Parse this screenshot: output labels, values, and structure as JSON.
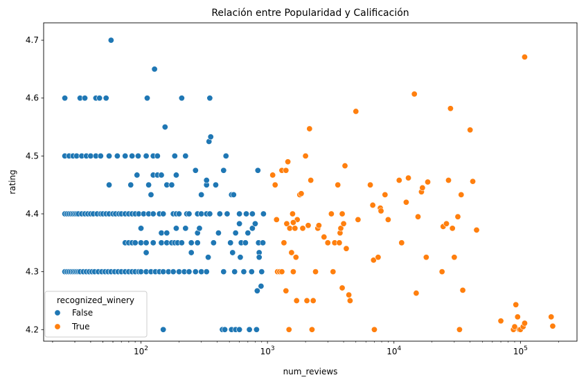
{
  "chart_data": {
    "type": "scatter",
    "title": "Relación entre Popularidad y Calificación",
    "xlabel": "num_reviews",
    "ylabel": "rating",
    "x_scale": "log",
    "xlim": [
      17,
      280000
    ],
    "ylim": [
      4.18,
      4.73
    ],
    "x_ticks": [
      {
        "value": 100,
        "base": "10",
        "exp": "2"
      },
      {
        "value": 1000,
        "base": "10",
        "exp": "3"
      },
      {
        "value": 10000,
        "base": "10",
        "exp": "4"
      },
      {
        "value": 100000,
        "base": "10",
        "exp": "5"
      }
    ],
    "y_ticks": [
      {
        "value": 4.2,
        "label": "4.2"
      },
      {
        "value": 4.3,
        "label": "4.3"
      },
      {
        "value": 4.4,
        "label": "4.4"
      },
      {
        "value": 4.5,
        "label": "4.5"
      },
      {
        "value": 4.6,
        "label": "4.6"
      },
      {
        "value": 4.7,
        "label": "4.7"
      }
    ],
    "grid": false,
    "legend": {
      "title": "recognized_winery",
      "placement": "lower-left"
    },
    "series": [
      {
        "name": "False",
        "color": "#1f77b4",
        "points": [
          [
            25,
            4.4
          ],
          [
            26,
            4.4
          ],
          [
            27,
            4.4
          ],
          [
            28,
            4.4
          ],
          [
            29,
            4.4
          ],
          [
            30,
            4.4
          ],
          [
            31,
            4.4
          ],
          [
            32,
            4.4
          ],
          [
            34,
            4.4
          ],
          [
            36,
            4.4
          ],
          [
            38,
            4.4
          ],
          [
            40,
            4.4
          ],
          [
            42,
            4.4
          ],
          [
            45,
            4.4
          ],
          [
            48,
            4.4
          ],
          [
            50,
            4.4
          ],
          [
            53,
            4.4
          ],
          [
            56,
            4.4
          ],
          [
            60,
            4.4
          ],
          [
            63,
            4.4
          ],
          [
            67,
            4.4
          ],
          [
            70,
            4.4
          ],
          [
            75,
            4.4
          ],
          [
            80,
            4.4
          ],
          [
            85,
            4.4
          ],
          [
            90,
            4.4
          ],
          [
            96,
            4.4
          ],
          [
            105,
            4.4
          ],
          [
            115,
            4.4
          ],
          [
            125,
            4.4
          ],
          [
            140,
            4.4
          ],
          [
            150,
            4.4
          ],
          [
            180,
            4.4
          ],
          [
            190,
            4.4
          ],
          [
            200,
            4.4
          ],
          [
            230,
            4.4
          ],
          [
            240,
            4.4
          ],
          [
            280,
            4.4
          ],
          [
            300,
            4.4
          ],
          [
            330,
            4.4
          ],
          [
            350,
            4.4
          ],
          [
            420,
            4.4
          ],
          [
            480,
            4.4
          ],
          [
            600,
            4.4
          ],
          [
            680,
            4.4
          ],
          [
            760,
            4.4
          ],
          [
            930,
            4.4
          ],
          [
            25,
            4.3
          ],
          [
            26,
            4.3
          ],
          [
            27,
            4.3
          ],
          [
            28,
            4.3
          ],
          [
            29,
            4.3
          ],
          [
            30,
            4.3
          ],
          [
            31,
            4.3
          ],
          [
            32,
            4.3
          ],
          [
            33,
            4.3
          ],
          [
            35,
            4.3
          ],
          [
            37,
            4.3
          ],
          [
            39,
            4.3
          ],
          [
            41,
            4.3
          ],
          [
            43,
            4.3
          ],
          [
            46,
            4.3
          ],
          [
            49,
            4.3
          ],
          [
            52,
            4.3
          ],
          [
            55,
            4.3
          ],
          [
            58,
            4.3
          ],
          [
            62,
            4.3
          ],
          [
            66,
            4.3
          ],
          [
            70,
            4.3
          ],
          [
            75,
            4.3
          ],
          [
            80,
            4.3
          ],
          [
            85,
            4.3
          ],
          [
            90,
            4.3
          ],
          [
            96,
            4.3
          ],
          [
            100,
            4.3
          ],
          [
            110,
            4.3
          ],
          [
            120,
            4.3
          ],
          [
            130,
            4.3
          ],
          [
            140,
            4.3
          ],
          [
            150,
            4.3
          ],
          [
            165,
            4.3
          ],
          [
            180,
            4.3
          ],
          [
            200,
            4.3
          ],
          [
            220,
            4.3
          ],
          [
            240,
            4.3
          ],
          [
            270,
            4.3
          ],
          [
            300,
            4.3
          ],
          [
            330,
            4.3
          ],
          [
            450,
            4.3
          ],
          [
            550,
            4.3
          ],
          [
            650,
            4.3
          ],
          [
            750,
            4.3
          ],
          [
            900,
            4.3
          ],
          [
            25,
            4.5
          ],
          [
            27,
            4.5
          ],
          [
            29,
            4.5
          ],
          [
            31,
            4.5
          ],
          [
            34,
            4.5
          ],
          [
            37,
            4.5
          ],
          [
            40,
            4.5
          ],
          [
            44,
            4.5
          ],
          [
            48,
            4.5
          ],
          [
            56,
            4.5
          ],
          [
            65,
            4.5
          ],
          [
            75,
            4.5
          ],
          [
            85,
            4.5
          ],
          [
            95,
            4.5
          ],
          [
            110,
            4.5
          ],
          [
            125,
            4.5
          ],
          [
            135,
            4.5
          ],
          [
            185,
            4.5
          ],
          [
            225,
            4.5
          ],
          [
            470,
            4.5
          ],
          [
            25,
            4.6
          ],
          [
            33,
            4.6
          ],
          [
            36,
            4.6
          ],
          [
            44,
            4.6
          ],
          [
            47,
            4.6
          ],
          [
            53,
            4.6
          ],
          [
            112,
            4.6
          ],
          [
            210,
            4.6
          ],
          [
            350,
            4.6
          ],
          [
            58,
            4.7
          ],
          [
            128,
            4.65
          ],
          [
            155,
            4.55
          ],
          [
            345,
            4.525
          ],
          [
            356,
            4.533
          ],
          [
            56,
            4.45
          ],
          [
            83,
            4.45
          ],
          [
            93,
            4.467
          ],
          [
            115,
            4.45
          ],
          [
            125,
            4.467
          ],
          [
            135,
            4.467
          ],
          [
            145,
            4.467
          ],
          [
            160,
            4.45
          ],
          [
            175,
            4.45
          ],
          [
            190,
            4.467
          ],
          [
            270,
            4.475
          ],
          [
            330,
            4.45
          ],
          [
            330,
            4.458
          ],
          [
            390,
            4.45
          ],
          [
            450,
            4.475
          ],
          [
            520,
            4.433
          ],
          [
            540,
            4.433
          ],
          [
            840,
            4.475
          ],
          [
            120,
            4.433
          ],
          [
            300,
            4.433
          ],
          [
            75,
            4.35
          ],
          [
            80,
            4.35
          ],
          [
            85,
            4.35
          ],
          [
            90,
            4.35
          ],
          [
            100,
            4.35
          ],
          [
            110,
            4.35
          ],
          [
            125,
            4.35
          ],
          [
            145,
            4.35
          ],
          [
            160,
            4.35
          ],
          [
            175,
            4.35
          ],
          [
            185,
            4.35
          ],
          [
            195,
            4.35
          ],
          [
            210,
            4.35
          ],
          [
            250,
            4.35
          ],
          [
            280,
            4.35
          ],
          [
            100,
            4.375
          ],
          [
            145,
            4.367
          ],
          [
            160,
            4.367
          ],
          [
            190,
            4.375
          ],
          [
            225,
            4.375
          ],
          [
            280,
            4.367
          ],
          [
            290,
            4.375
          ],
          [
            375,
            4.35
          ],
          [
            410,
            4.367
          ],
          [
            510,
            4.35
          ],
          [
            530,
            4.333
          ],
          [
            560,
            4.367
          ],
          [
            600,
            4.383
          ],
          [
            620,
            4.35
          ],
          [
            670,
            4.35
          ],
          [
            700,
            4.367
          ],
          [
            760,
            4.375
          ],
          [
            800,
            4.383
          ],
          [
            850,
            4.35
          ],
          [
            860,
            4.333
          ],
          [
            250,
            4.333
          ],
          [
            340,
            4.325
          ],
          [
            610,
            4.325
          ],
          [
            110,
            4.333
          ],
          [
            150,
            4.2
          ],
          [
            440,
            4.2
          ],
          [
            460,
            4.2
          ],
          [
            520,
            4.2
          ],
          [
            560,
            4.2
          ],
          [
            600,
            4.2
          ],
          [
            720,
            4.2
          ],
          [
            820,
            4.2
          ],
          [
            890,
            4.275
          ],
          [
            830,
            4.267
          ],
          [
            920,
            4.35
          ],
          [
            860,
            4.325
          ]
        ]
      },
      {
        "name": "True",
        "color": "#ff7f0e",
        "points": [
          [
            1100,
            4.467
          ],
          [
            1150,
            4.45
          ],
          [
            1180,
            4.39
          ],
          [
            1200,
            4.3
          ],
          [
            1250,
            4.3
          ],
          [
            1300,
            4.475
          ],
          [
            1350,
            4.35
          ],
          [
            1400,
            4.475
          ],
          [
            1420,
            4.383
          ],
          [
            1450,
            4.49
          ],
          [
            1500,
            4.375
          ],
          [
            1550,
            4.333
          ],
          [
            1580,
            4.4
          ],
          [
            1600,
            4.3
          ],
          [
            1650,
            4.375
          ],
          [
            1680,
            4.325
          ],
          [
            1700,
            4.25
          ],
          [
            1720,
            4.39
          ],
          [
            1800,
            4.433
          ],
          [
            1900,
            4.375
          ],
          [
            2000,
            4.5
          ],
          [
            2100,
            4.38
          ],
          [
            2150,
            4.547
          ],
          [
            2200,
            4.458
          ],
          [
            2500,
            4.375
          ],
          [
            2550,
            4.38
          ],
          [
            2800,
            4.36
          ],
          [
            3000,
            4.35
          ],
          [
            3200,
            4.4
          ],
          [
            3300,
            4.3
          ],
          [
            3400,
            4.35
          ],
          [
            3600,
            4.45
          ],
          [
            3700,
            4.35
          ],
          [
            3750,
            4.367
          ],
          [
            3800,
            4.375
          ],
          [
            3900,
            4.4
          ],
          [
            4000,
            4.383
          ],
          [
            4100,
            4.483
          ],
          [
            4200,
            4.34
          ],
          [
            4400,
            4.26
          ],
          [
            4500,
            4.25
          ],
          [
            5000,
            4.577
          ],
          [
            5200,
            4.39
          ],
          [
            6500,
            4.45
          ],
          [
            6800,
            4.415
          ],
          [
            6900,
            4.32
          ],
          [
            7500,
            4.325
          ],
          [
            7800,
            4.41
          ],
          [
            7900,
            4.405
          ],
          [
            8500,
            4.433
          ],
          [
            9000,
            4.39
          ],
          [
            11000,
            4.458
          ],
          [
            11500,
            4.35
          ],
          [
            12500,
            4.42
          ],
          [
            13000,
            4.462
          ],
          [
            14500,
            4.607
          ],
          [
            15000,
            4.263
          ],
          [
            15500,
            4.395
          ],
          [
            16500,
            4.438
          ],
          [
            16800,
            4.445
          ],
          [
            18000,
            4.325
          ],
          [
            18500,
            4.455
          ],
          [
            24000,
            4.3
          ],
          [
            24500,
            4.378
          ],
          [
            26000,
            4.383
          ],
          [
            27000,
            4.458
          ],
          [
            28000,
            4.582
          ],
          [
            29000,
            4.375
          ],
          [
            30000,
            4.325
          ],
          [
            32000,
            4.395
          ],
          [
            33000,
            4.2
          ],
          [
            34000,
            4.433
          ],
          [
            35000,
            4.268
          ],
          [
            40000,
            4.545
          ],
          [
            42000,
            4.456
          ],
          [
            45000,
            4.372
          ],
          [
            1300,
            4.3
          ],
          [
            1400,
            4.267
          ],
          [
            1480,
            4.2
          ],
          [
            2050,
            4.25
          ],
          [
            2300,
            4.25
          ],
          [
            2250,
            4.2
          ],
          [
            2400,
            4.3
          ],
          [
            3900,
            4.272
          ],
          [
            7000,
            4.2
          ],
          [
            1600,
            4.385
          ],
          [
            1850,
            4.435
          ],
          [
            70000,
            4.215
          ],
          [
            88000,
            4.2
          ],
          [
            90000,
            4.205
          ],
          [
            92000,
            4.243
          ],
          [
            95000,
            4.222
          ],
          [
            98000,
            4.2
          ],
          [
            100000,
            4.2
          ],
          [
            105000,
            4.205
          ],
          [
            108000,
            4.211
          ],
          [
            108000,
            4.671
          ],
          [
            175000,
            4.222
          ],
          [
            180000,
            4.206
          ]
        ]
      }
    ]
  }
}
